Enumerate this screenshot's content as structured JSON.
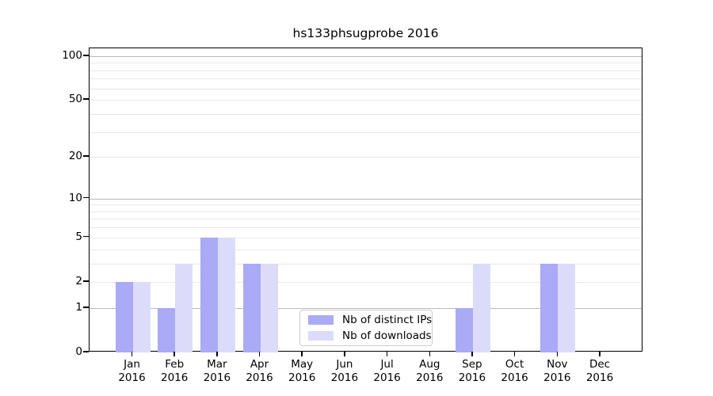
{
  "chart_data": {
    "type": "bar",
    "title": "hs133phsugprobe 2016",
    "categories": [
      "Jan 2016",
      "Feb 2016",
      "Mar 2016",
      "Apr 2016",
      "May 2016",
      "Jun 2016",
      "Jul 2016",
      "Aug 2016",
      "Sep 2016",
      "Oct 2016",
      "Nov 2016",
      "Dec 2016"
    ],
    "series": [
      {
        "name": "Nb of distinct IPs",
        "color": "#aaaaf6",
        "values": [
          2,
          1,
          5,
          3,
          0,
          0,
          0,
          0,
          1,
          0,
          3,
          0
        ]
      },
      {
        "name": "Nb of downloads",
        "color": "#dcdcfa",
        "values": [
          2,
          3,
          5,
          3,
          0,
          0,
          0,
          0,
          3,
          0,
          3,
          0
        ]
      }
    ],
    "yscale": "log1p",
    "ylim": [
      0,
      113
    ],
    "yticks": [
      0,
      1,
      2,
      5,
      10,
      20,
      50,
      100
    ],
    "gridlines_dark": [
      1,
      10,
      100
    ],
    "gridlines_light": [
      2,
      3,
      4,
      5,
      6,
      7,
      8,
      9,
      20,
      30,
      40,
      50,
      60,
      70,
      80,
      90
    ],
    "grid": true,
    "legend_position": "lower-center"
  },
  "colors": {
    "axis": "#000000",
    "grid_major": "#b9b9b9",
    "grid_minor": "#e8e8e8",
    "legend_border": "#cccccc",
    "background": "#ffffff"
  }
}
